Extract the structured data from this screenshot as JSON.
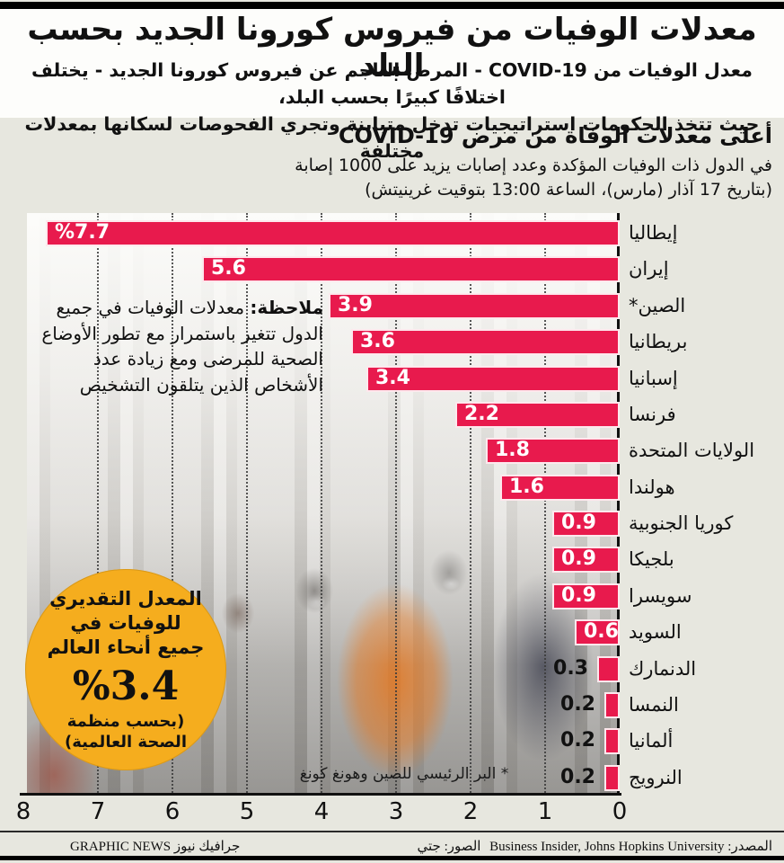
{
  "page": {
    "title": "معدلات الوفيات من فيروس كورونا الجديد بحسب البلد",
    "intro_line1": "معدل الوفيات من COVID-19 - المرض الناجم عن فيروس كورونا الجديد - يختلف اختلافًا كبيرًا بحسب البلد،",
    "intro_line2": "حيث تتخذ الحكومات استراتيجيات تدخل متباينة وتجري الفحوصات لسكانها بمعدلات مختلفة"
  },
  "chart_header": {
    "title": "أعلى معدلات الوفاة من مرض COVID-19",
    "subtitle1": "في الدول ذات الوفيات المؤكدة وعدد إصابات يزيد على 1000 إصابة",
    "subtitle2": "(بتاريخ 17 آذار (مارس)، الساعة 13:00 بتوقيت غرينيتش)"
  },
  "note": {
    "label": "ملاحظة:",
    "text": " معدلات الوفيات في جميع الدول تتغير باستمرار مع تطور الأوضاع الصحية للمرضى ومع زيادة عدد الأشخاص الذين يتلقون التشخيص"
  },
  "world_rate": {
    "text": "المعدل التقديري للوفيات في جميع أنحاء العالم",
    "stat": "%3.4",
    "source": "(بحسب منظمة الصحة العالمية)"
  },
  "footnote": "* البر الرئيسي للصين وهونغ كونغ",
  "chart_data": {
    "type": "bar",
    "orientation": "horizontal-rtl",
    "title": "أعلى معدلات الوفاة من مرض COVID-19",
    "categories": [
      "إيطاليا",
      "إيران",
      "الصين*",
      "بريطانيا",
      "إسبانيا",
      "فرنسا",
      "الولايات المتحدة",
      "هولندا",
      "كوريا الجنوبية",
      "بلجيكا",
      "سويسرا",
      "السويد",
      "الدنمارك",
      "النمسا",
      "ألمانيا",
      "النرويج"
    ],
    "values": [
      7.7,
      5.6,
      3.9,
      3.6,
      3.4,
      2.2,
      1.8,
      1.6,
      0.9,
      0.9,
      0.9,
      0.6,
      0.3,
      0.2,
      0.2,
      0.2
    ],
    "value_labels": [
      "%7.7",
      "5.6",
      "3.9",
      "3.6",
      "3.4",
      "2.2",
      "1.8",
      "1.6",
      "0.9",
      "0.9",
      "0.9",
      "0.6",
      "0.3",
      "0.2",
      "0.2",
      "0.2"
    ],
    "unit": "%",
    "xlim": [
      0,
      8
    ],
    "x_ticks": [
      8,
      7,
      6,
      5,
      4,
      3,
      2,
      1,
      0
    ],
    "grid": "dotted-vertical",
    "legend": "none",
    "bar_color": "#e81a4d"
  },
  "footer": {
    "left": "GRAPHIC NEWS جرافيك نيوز",
    "center": "الصور: جتي",
    "right": "المصدر: Business Insider, Johns Hopkins University"
  },
  "colors": {
    "bar": "#e81a4d",
    "circle": "#f5ad1e",
    "page_bg": "#e7e7df",
    "header_bg": "#fdfdfb",
    "ink": "#111111"
  }
}
